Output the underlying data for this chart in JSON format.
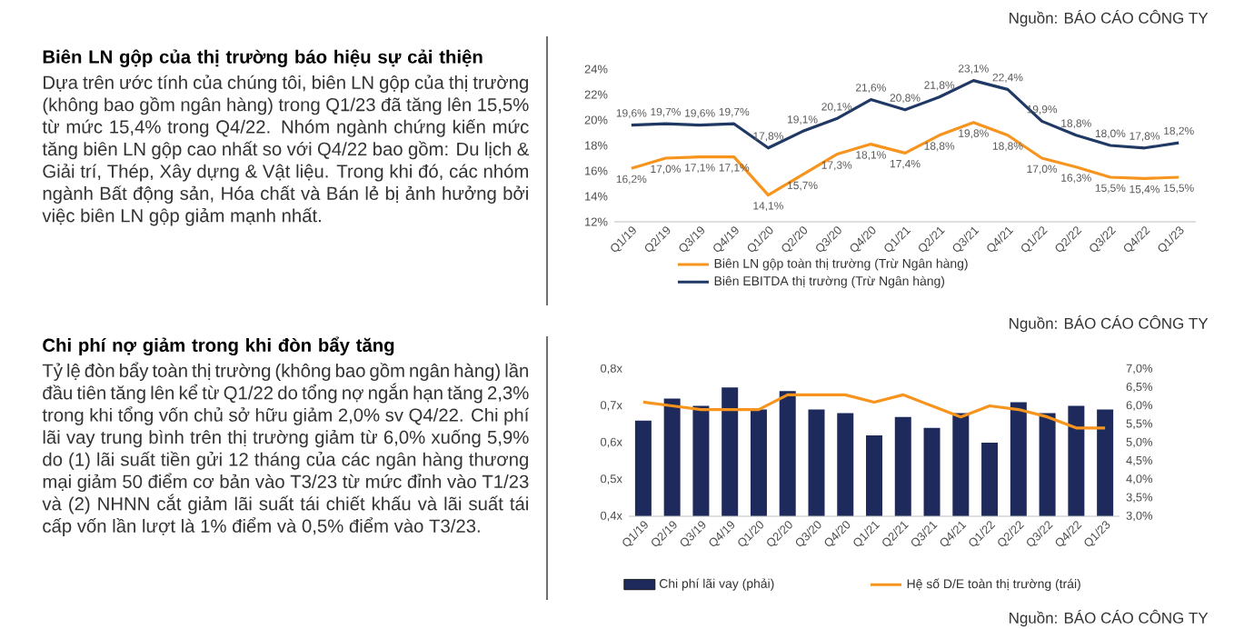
{
  "chart_data": [
    {
      "type": "other",
      "title": "Biên LN gộp của thị trường báo hiệu sự cải thiện",
      "annotations": [
        "Dựa trên ước tính của chúng tôi, biên LN gộp của thị trường (không bao gồm ngân hàng) trong Q1/23 đã tăng lên 15,5% từ mức 15,4% trong Q4/22. Nhóm ngành chứng kiến mức tăng biên LN gộp cao nhất so với Q4/22 bao gồm: Du lịch & Giải trí, Thép, Xây dựng & Vật liệu. Trong khi đó, các nhóm ngành Bất động sản, Hóa chất và Bán lẻ bị ảnh hưởng bởi việc biên LN gộp giảm mạnh nhất."
      ]
    },
    {
      "type": "line",
      "categories": [
        "Q1/19",
        "Q2/19",
        "Q3/19",
        "Q4/19",
        "Q1/20",
        "Q2/20",
        "Q3/20",
        "Q4/20",
        "Q1/21",
        "Q2/21",
        "Q3/21",
        "Q4/21",
        "Q1/22",
        "Q2/22",
        "Q3/22",
        "Q4/22",
        "Q1/23"
      ],
      "series": [
        {
          "name": "Biên LN gộp toàn thị trường (Trừ Ngân hàng)",
          "color": "#f7941d",
          "values": [
            16.2,
            17.0,
            17.1,
            17.1,
            14.1,
            15.7,
            17.3,
            18.1,
            17.4,
            18.8,
            19.8,
            18.8,
            17.0,
            16.3,
            15.5,
            15.4,
            15.5
          ],
          "value_labels": [
            "16,2%",
            "17,0%",
            "17,1%",
            "17,1%",
            "14,1%",
            "15,7%",
            "17,3%",
            "18,1%",
            "17,4%",
            "18,8%",
            "19,8%",
            "18,8%",
            "17,0%",
            "16,3%",
            "15,5%",
            "15,4%",
            "15,5%"
          ]
        },
        {
          "name": "Biên EBITDA thị trường (Trừ Ngân hàng)",
          "color": "#1f3864",
          "values": [
            19.6,
            19.7,
            19.6,
            19.7,
            17.8,
            19.1,
            20.1,
            21.6,
            20.8,
            21.8,
            23.1,
            22.4,
            19.9,
            18.8,
            18.0,
            17.8,
            18.2
          ],
          "value_labels": [
            "19,6%",
            "19,7%",
            "19,6%",
            "19,7%",
            "17,8%",
            "19,1%",
            "20,1%",
            "21,6%",
            "20,8%",
            "21,8%",
            "23,1%",
            "22,4%",
            "19,9%",
            "18,8%",
            "18,0%",
            "17,8%",
            "18,2%"
          ]
        }
      ],
      "ylim": [
        12,
        24
      ],
      "yticks": [
        {
          "value": 12,
          "label": "12%"
        },
        {
          "value": 14,
          "label": "14%"
        },
        {
          "value": 16,
          "label": "16%"
        },
        {
          "value": 18,
          "label": "18%"
        },
        {
          "value": 20,
          "label": "20%"
        },
        {
          "value": 22,
          "label": "22%"
        },
        {
          "value": 24,
          "label": "24%"
        }
      ],
      "legend": "bottom",
      "annotations": [
        "Nguồn: BÁO CÁO CÔNG TY",
        "Nguồn: BÁO CÁO CÔNG TY"
      ]
    },
    {
      "type": "other",
      "title": "Chi phí nợ giảm trong khi đòn bẩy tăng",
      "annotations": [
        "Tỷ lệ đòn bẩy toàn thị trường (không bao gồm ngân hàng) lần đầu tiên tăng lên kể từ Q1/22 do tổng nợ ngắn hạn tăng 2,3% trong khi tổng vốn chủ sở hữu giảm 2,0% sv Q4/22. Chi phí lãi vay trung bình trên thị trường giảm từ 6,0% xuống 5,9% do (1) lãi suất tiền gửi 12 tháng của các ngân hàng thương mại giảm 50 điểm cơ bản vào T3/23 từ mức đỉnh vào T1/23 và (2) NHNN cắt giảm lãi suất tái chiết khấu và lãi suất tái cấp vốn lần lượt là 1% điểm và 0,5% điểm vào T3/23."
      ]
    },
    {
      "type": "bar",
      "categories": [
        "Q1/19",
        "Q2/19",
        "Q3/19",
        "Q4/19",
        "Q1/20",
        "Q2/20",
        "Q3/20",
        "Q4/20",
        "Q1/21",
        "Q2/21",
        "Q3/21",
        "Q4/21",
        "Q1/22",
        "Q2/22",
        "Q3/22",
        "Q4/22",
        "Q1/23"
      ],
      "series": [
        {
          "name": "Chi phí lãi vay (phải)",
          "type": "bar",
          "axis": "y2",
          "color": "#1f2a5c",
          "values": [
            5.6,
            6.2,
            6.0,
            6.5,
            5.9,
            6.4,
            5.9,
            5.8,
            5.2,
            5.7,
            5.4,
            5.8,
            5.0,
            6.1,
            5.8,
            6.0,
            5.9
          ]
        },
        {
          "name": "Hệ số D/E toàn thị trường (trái)",
          "type": "line",
          "color": "#f7941d",
          "values": [
            0.71,
            0.7,
            0.69,
            0.69,
            0.69,
            0.73,
            0.73,
            0.73,
            0.71,
            0.73,
            0.7,
            0.67,
            0.7,
            0.69,
            0.67,
            0.64,
            0.64
          ]
        }
      ],
      "ylim": [
        0.4,
        0.8
      ],
      "yticks": [
        {
          "value": 0.4,
          "label": "0,4x"
        },
        {
          "value": 0.5,
          "label": "0,5x"
        },
        {
          "value": 0.6,
          "label": "0,6x"
        },
        {
          "value": 0.7,
          "label": "0,7x"
        },
        {
          "value": 0.8,
          "label": "0,8x"
        }
      ],
      "y2lim": [
        3,
        7
      ],
      "y2ticks": [
        {
          "value": 3,
          "label": "3,0%"
        },
        {
          "value": 3.5,
          "label": "3,5%"
        },
        {
          "value": 4,
          "label": "4,0%"
        },
        {
          "value": 4.5,
          "label": "4,5%"
        },
        {
          "value": 5,
          "label": "5,0%"
        },
        {
          "value": 5.5,
          "label": "5,5%"
        },
        {
          "value": 6,
          "label": "6,0%"
        },
        {
          "value": 6.5,
          "label": "6,5%"
        },
        {
          "value": 7,
          "label": "7,0%"
        }
      ],
      "legend": "bottom",
      "annotations": [
        "Nguồn: BÁO CÁO CÔNG TY"
      ]
    }
  ]
}
